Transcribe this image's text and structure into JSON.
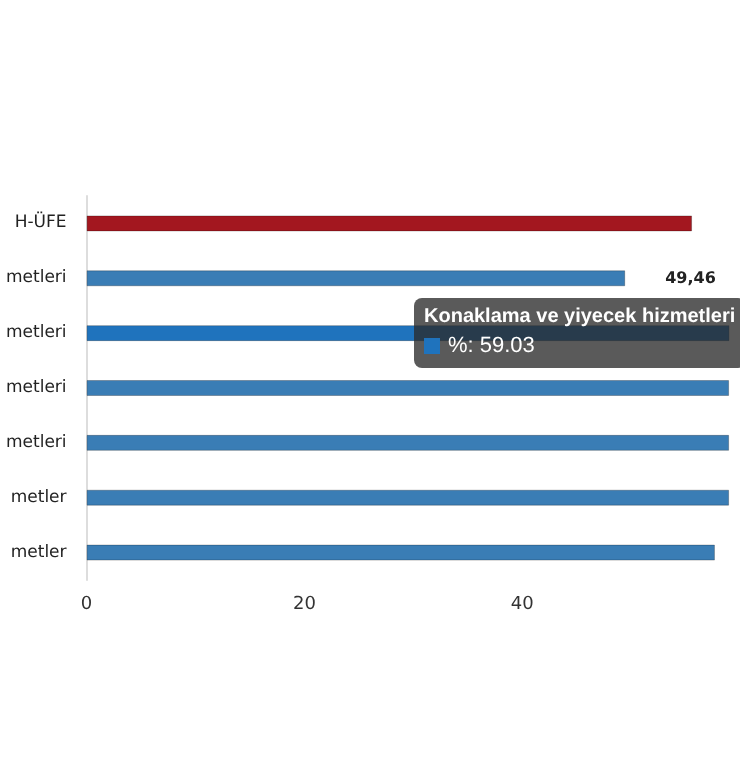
{
  "chart_data": {
    "type": "bar",
    "orientation": "horizontal",
    "categories": [
      "H-ÜFE",
      "metleri",
      "metleri",
      "metleri",
      "metleri",
      "metler",
      "metler"
    ],
    "values": [
      55.6,
      49.46,
      59.03,
      59,
      59,
      59,
      57.7
    ],
    "colors": [
      "#a3171f",
      "#3a7db5",
      "#1f73bd",
      "#3a7db5",
      "#3a7db5",
      "#3a7db5",
      "#3a7db5"
    ],
    "value_labels": [
      null,
      "49,46",
      null,
      null,
      null,
      null,
      null
    ],
    "xlim": [
      0,
      60
    ],
    "xticks": [
      0,
      20,
      40
    ],
    "grid": false,
    "annotations": [
      "Konaklama ve yiyecek hizmetleri",
      "%: 59.03"
    ]
  }
}
